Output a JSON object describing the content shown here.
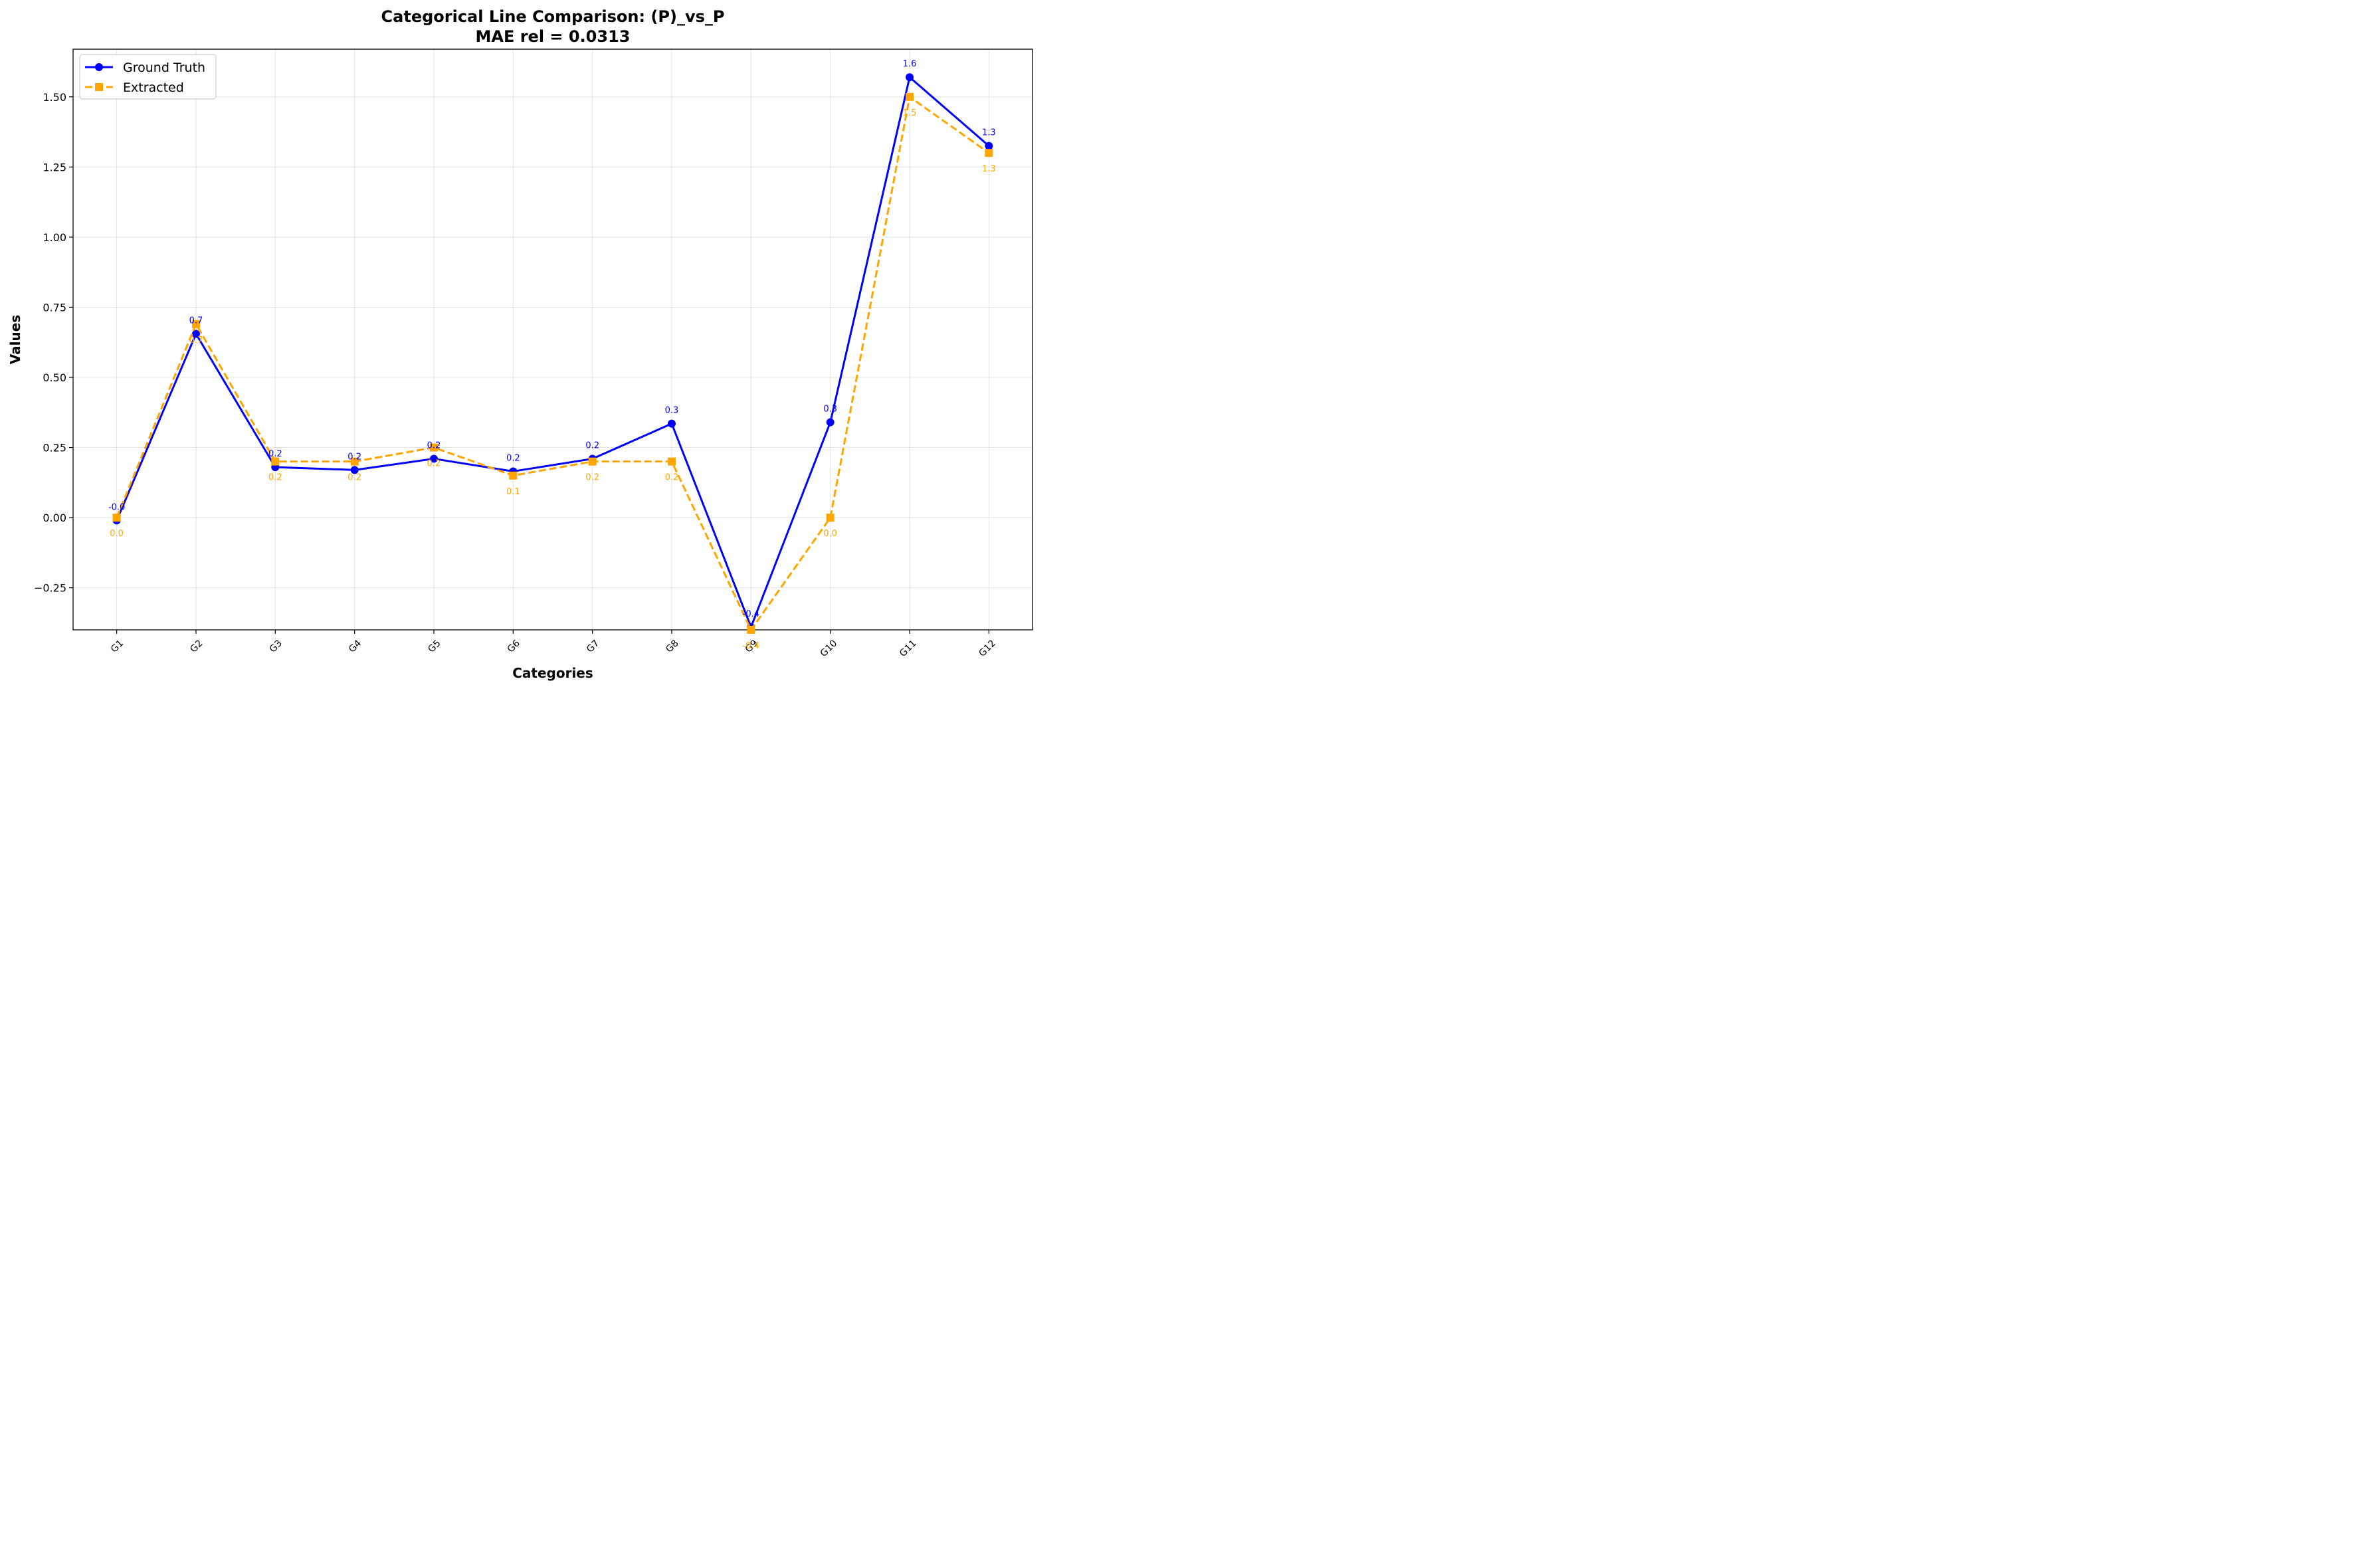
{
  "chart_data": {
    "type": "line",
    "title": "Categorical Line Comparison: (P)_vs_P",
    "subtitle": "MAE rel = 0.0313",
    "xlabel": "Categories",
    "ylabel": "Values",
    "categories": [
      "G1",
      "G2",
      "G3",
      "G4",
      "G5",
      "G6",
      "G7",
      "G8",
      "G9",
      "G10",
      "G11",
      "G12"
    ],
    "ylim": [
      -0.4,
      1.67
    ],
    "yticks": [
      -0.25,
      0.0,
      0.25,
      0.5,
      0.75,
      1.0,
      1.25,
      1.5
    ],
    "ytick_labels": [
      "−0.25",
      "0.00",
      "0.25",
      "0.50",
      "0.75",
      "1.00",
      "1.25",
      "1.50"
    ],
    "grid": true,
    "legend_position": "top-left",
    "series": [
      {
        "name": "Ground Truth",
        "color": "#0000ff",
        "marker": "circle",
        "line_style": "solid",
        "values": [
          -0.01,
          0.655,
          0.18,
          0.17,
          0.21,
          0.165,
          0.21,
          0.335,
          -0.39,
          0.34,
          1.57,
          1.325
        ],
        "labels": [
          "-0.0",
          "0.7",
          "0.2",
          "0.2",
          "0.2",
          "0.2",
          "0.2",
          "0.3",
          "-0.4",
          "0.3",
          "1.6",
          "1.3"
        ]
      },
      {
        "name": "Extracted",
        "color": "#ffa500",
        "marker": "square",
        "line_style": "dashed",
        "values": [
          0.0,
          0.69,
          0.2,
          0.2,
          0.25,
          0.15,
          0.2,
          0.2,
          -0.4,
          0.0,
          1.5,
          1.3
        ],
        "labels": [
          "0.0",
          "0.7",
          "0.2",
          "0.2",
          "0.2",
          "0.1",
          "0.2",
          "0.2",
          "-0.4",
          "0.0",
          "1.5",
          "1.3"
        ]
      }
    ]
  }
}
